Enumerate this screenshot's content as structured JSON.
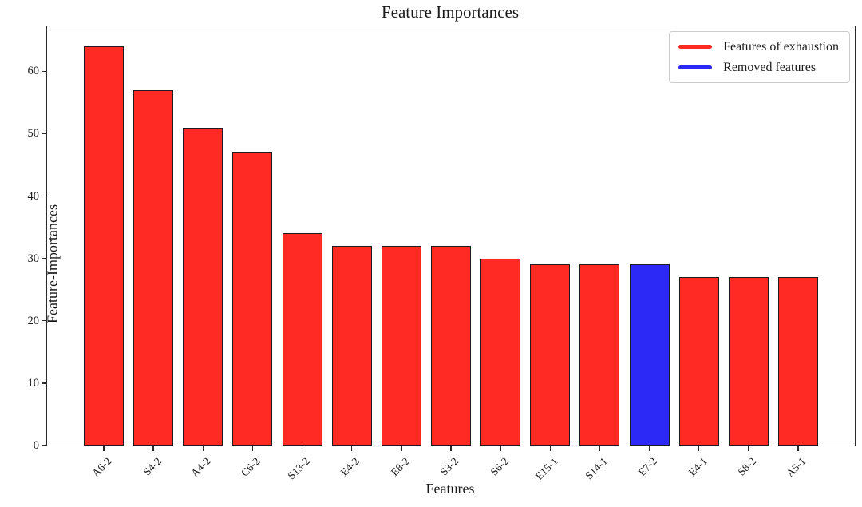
{
  "chart_data": {
    "type": "bar",
    "title": "Feature Importances",
    "xlabel": "Features",
    "ylabel": "Feature-Importances",
    "categories": [
      "A6-2",
      "S4-2",
      "A4-2",
      "C6-2",
      "S13-2",
      "E4-2",
      "E8-2",
      "S3-2",
      "S6-2",
      "E15-1",
      "S14-1",
      "E7-2",
      "E4-1",
      "S8-2",
      "A5-1"
    ],
    "values": [
      64,
      57,
      51,
      47,
      34,
      32,
      32,
      32,
      30,
      29,
      29,
      29,
      27,
      27,
      27
    ],
    "bar_colors": [
      "#ff2a24",
      "#ff2a24",
      "#ff2a24",
      "#ff2a24",
      "#ff2a24",
      "#ff2a24",
      "#ff2a24",
      "#ff2a24",
      "#ff2a24",
      "#ff2a24",
      "#ff2a24",
      "#2c29f7",
      "#ff2a24",
      "#ff2a24",
      "#ff2a24"
    ],
    "bar_edge_color": "#1c1c1c",
    "ylim": [
      0,
      67.2
    ],
    "yticks": [
      0,
      10,
      20,
      30,
      40,
      50,
      60
    ],
    "grid": false,
    "legend": {
      "position": "upper right",
      "entries": [
        {
          "label": "Features of exhaustion",
          "color": "#ff2a24"
        },
        {
          "label": "Removed features",
          "color": "#2c29f7"
        }
      ]
    }
  }
}
